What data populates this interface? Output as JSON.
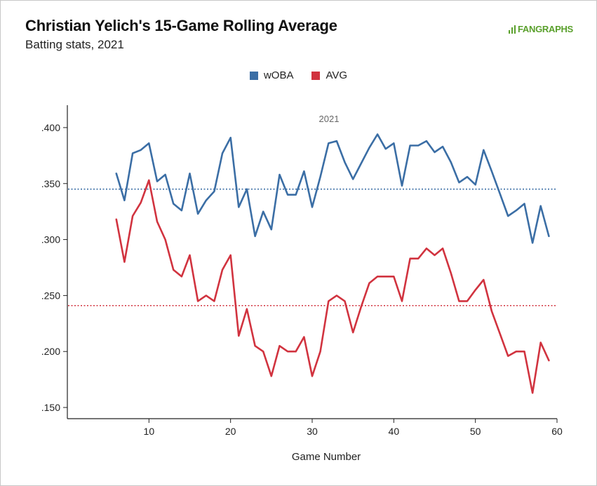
{
  "header": {
    "title": "Christian Yelich's 15-Game Rolling Average",
    "subtitle": "Batting stats, 2021",
    "brand": "FANGRAPHS"
  },
  "chart_data": {
    "type": "line",
    "title": "Christian Yelich's 15-Game Rolling Average",
    "subtitle": "Batting stats, 2021",
    "xlabel": "Game Number",
    "ylabel": "",
    "annotation": "2021",
    "xlim": [
      0,
      60
    ],
    "ylim": [
      0.14,
      0.42
    ],
    "x_ticks": [
      10,
      20,
      30,
      40,
      50,
      60
    ],
    "y_ticks": [
      0.15,
      0.2,
      0.25,
      0.3,
      0.35,
      0.4
    ],
    "y_tick_labels": [
      ".150",
      ".200",
      ".250",
      ".300",
      ".350",
      ".400"
    ],
    "grid": false,
    "legend_position": "top-center",
    "x": [
      6,
      7,
      8,
      9,
      10,
      11,
      12,
      13,
      14,
      15,
      16,
      17,
      18,
      19,
      20,
      21,
      22,
      23,
      24,
      25,
      26,
      27,
      28,
      29,
      30,
      31,
      32,
      33,
      34,
      35,
      36,
      37,
      38,
      39,
      40,
      41,
      42,
      43,
      44,
      45,
      46,
      47,
      48,
      49,
      50,
      51,
      52,
      53,
      54,
      55,
      56,
      57,
      58,
      59
    ],
    "series": [
      {
        "name": "wOBA",
        "color": "#3b6ea5",
        "reference_line": 0.345,
        "values": [
          0.359,
          0.335,
          0.377,
          0.38,
          0.386,
          0.352,
          0.358,
          0.332,
          0.326,
          0.359,
          0.323,
          0.335,
          0.343,
          0.377,
          0.391,
          0.329,
          0.345,
          0.303,
          0.325,
          0.309,
          0.358,
          0.34,
          0.34,
          0.361,
          0.329,
          0.356,
          0.386,
          0.388,
          0.369,
          0.354,
          0.368,
          0.382,
          0.394,
          0.381,
          0.386,
          0.348,
          0.384,
          0.384,
          0.388,
          0.378,
          0.383,
          0.369,
          0.351,
          0.356,
          0.349,
          0.38,
          0.361,
          0.341,
          0.321,
          0.326,
          0.332,
          0.297,
          0.33,
          0.303
        ]
      },
      {
        "name": "AVG",
        "color": "#d1333f",
        "reference_line": 0.241,
        "values": [
          0.318,
          0.28,
          0.321,
          0.333,
          0.353,
          0.316,
          0.3,
          0.273,
          0.267,
          0.286,
          0.245,
          0.25,
          0.245,
          0.273,
          0.286,
          0.214,
          0.238,
          0.205,
          0.2,
          0.178,
          0.205,
          0.2,
          0.2,
          0.213,
          0.178,
          0.2,
          0.245,
          0.25,
          0.245,
          0.217,
          0.24,
          0.261,
          0.267,
          0.267,
          0.267,
          0.245,
          0.283,
          0.283,
          0.292,
          0.286,
          0.292,
          0.27,
          0.245,
          0.245,
          0.255,
          0.264,
          0.236,
          0.216,
          0.196,
          0.2,
          0.2,
          0.163,
          0.208,
          0.192
        ]
      }
    ]
  }
}
